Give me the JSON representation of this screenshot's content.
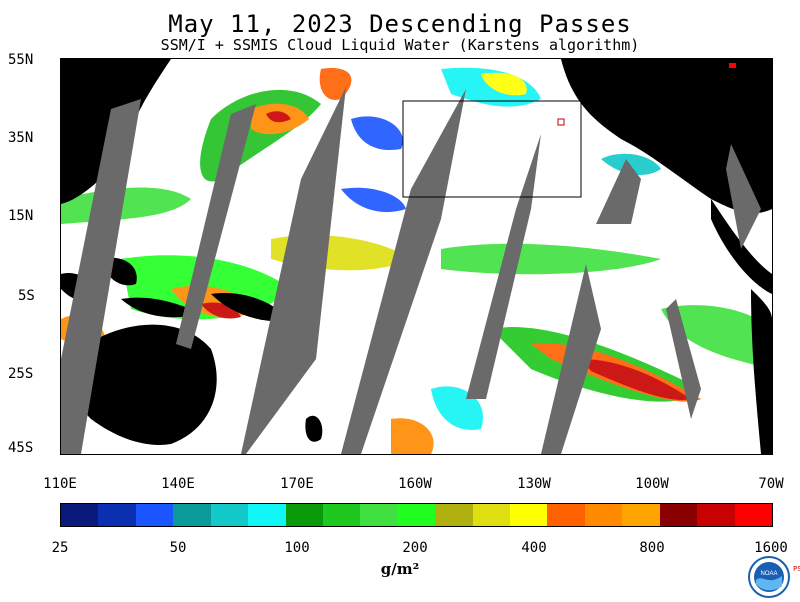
{
  "title": "May 11, 2023  Descending Passes",
  "subtitle": "SSM/I + SSMIS Cloud Liquid Water (Karstens algorithm)",
  "lat_labels": [
    "55N",
    "35N",
    "15N",
    "5S",
    "25S",
    "45S"
  ],
  "lon_labels": [
    "110E",
    "140E",
    "170E",
    "160W",
    "130W",
    "100W",
    "70W"
  ],
  "colorbar": {
    "colors": [
      "#0a1a7a",
      "#0a2fb0",
      "#1a55ff",
      "#0a9a9a",
      "#12c8c8",
      "#10f5f5",
      "#0a9a0a",
      "#1ec81e",
      "#40e040",
      "#20ff20",
      "#b0b010",
      "#dede10",
      "#ffff00",
      "#ff6000",
      "#ff8a00",
      "#ffa500",
      "#8a0000",
      "#c80000",
      "#ff0000"
    ],
    "tick_labels": [
      "25",
      "50",
      "100",
      "200",
      "400",
      "800",
      "1600"
    ]
  },
  "units": "g/m²",
  "logo": {
    "text": "NOAA",
    "side_text": "PSL"
  },
  "map": {
    "land_color": "#000000",
    "gap_color": "#6a6a6a",
    "ocean_color": "#ffffff"
  }
}
